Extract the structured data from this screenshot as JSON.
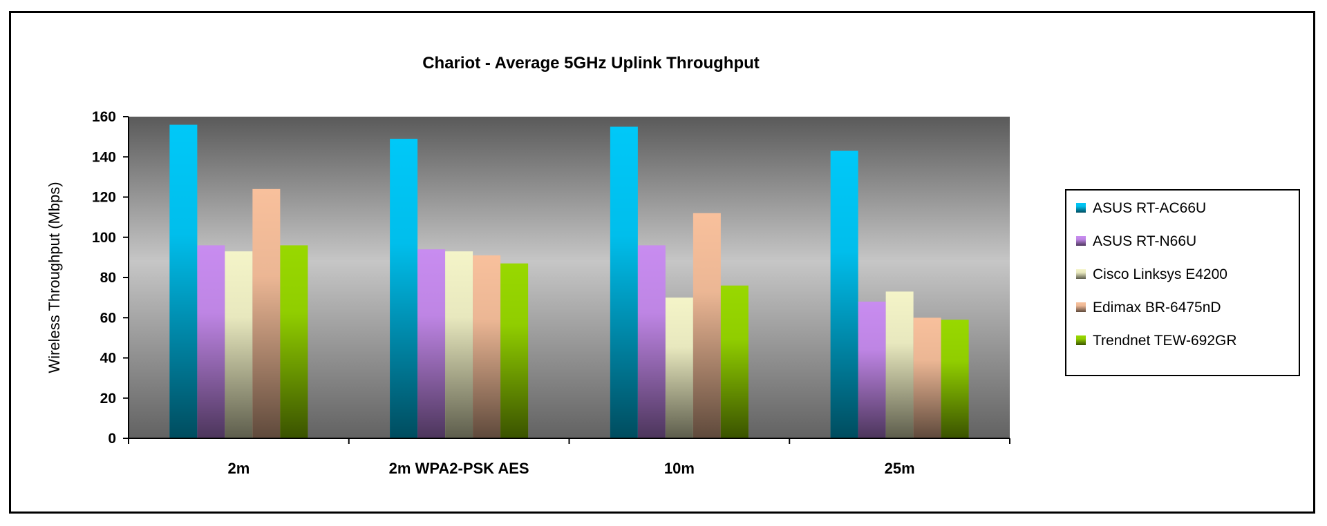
{
  "chart_data": {
    "type": "bar",
    "title": "Chariot - Average 5GHz Uplink Throughput",
    "xlabel": "",
    "ylabel": "Wireless Throughput (Mbps)",
    "ylim": [
      0,
      160
    ],
    "yticks": [
      0,
      20,
      40,
      60,
      80,
      100,
      120,
      140,
      160
    ],
    "categories": [
      "2m",
      "2m WPA2-PSK AES",
      "10m",
      "25m"
    ],
    "legend_position": "right",
    "series": [
      {
        "name": "ASUS RT-AC66U",
        "color": "#00c8f8",
        "values": [
          156,
          149,
          155,
          143
        ]
      },
      {
        "name": "ASUS RT-N66U",
        "color": "#c88cf0",
        "values": [
          96,
          94,
          96,
          68
        ]
      },
      {
        "name": "Cisco Linksys E4200",
        "color": "#f4f4c8",
        "values": [
          93,
          93,
          70,
          73
        ]
      },
      {
        "name": "Edimax BR-6475nD",
        "color": "#f8c09c",
        "values": [
          124,
          91,
          112,
          60
        ]
      },
      {
        "name": "Trendnet TEW-692GR",
        "color": "#98d800",
        "values": [
          96,
          87,
          76,
          59
        ]
      }
    ]
  }
}
